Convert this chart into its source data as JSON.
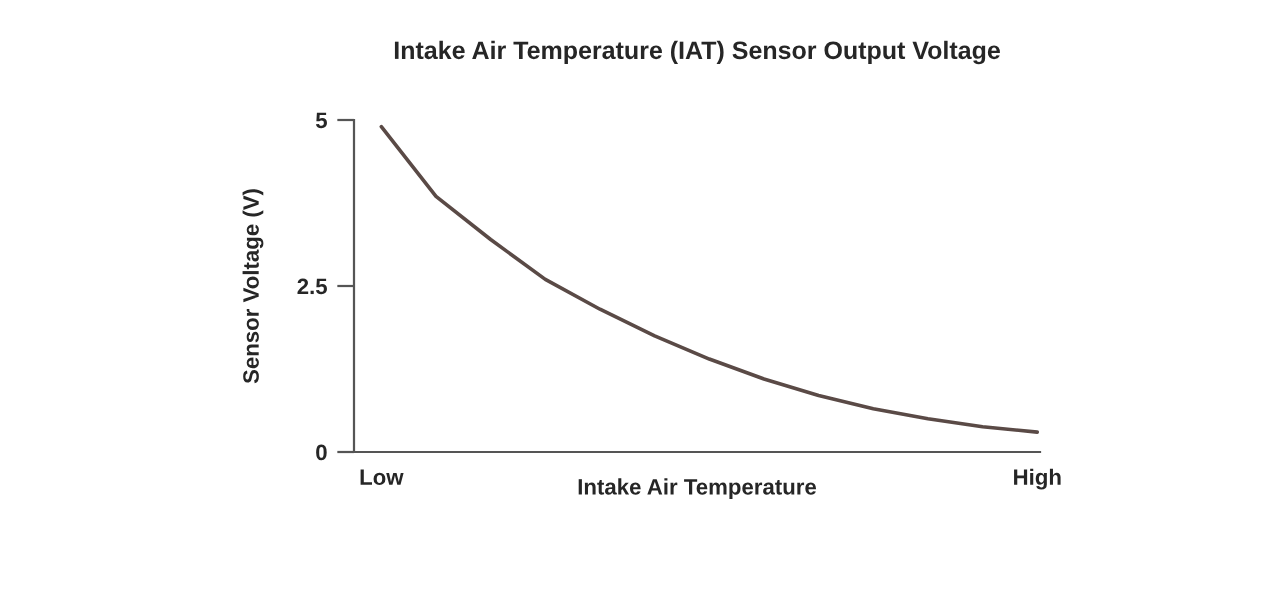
{
  "chart_data": {
    "type": "line",
    "title": "Intake Air Temperature (IAT) Sensor Output Voltage",
    "xlabel": "Intake Air Temperature",
    "ylabel": "Sensor Voltage (V)",
    "categories": [
      "Low",
      null,
      null,
      null,
      null,
      null,
      null,
      null,
      null,
      null,
      null,
      null,
      "High"
    ],
    "series": [
      {
        "color": "#5a4a46",
        "values": [
          4.9,
          3.85,
          3.2,
          2.6,
          2.15,
          1.75,
          1.4,
          1.1,
          0.85,
          0.65,
          0.5,
          0.38,
          0.3
        ]
      }
    ],
    "ylim": [
      0,
      5
    ],
    "yticks": [
      0,
      2.5,
      5
    ]
  }
}
